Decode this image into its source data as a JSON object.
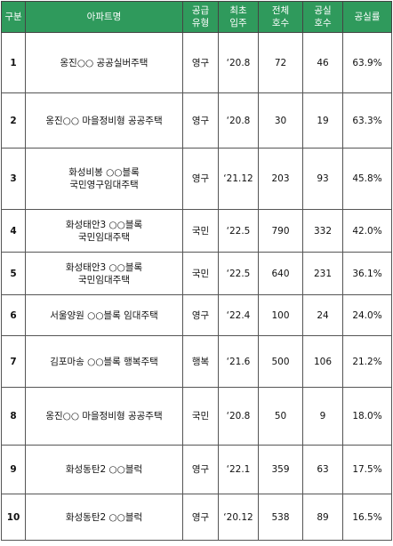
{
  "table": {
    "header": [
      "구분",
      "아파트명",
      "공급\n유형",
      "최초\n입주",
      "전체\n호수",
      "공실\n호수",
      "공실률"
    ],
    "rows": [
      [
        "1",
        "옹진○○ 공공실버주택",
        "영구",
        "‘20.8",
        72,
        46,
        "63.9%"
      ],
      [
        "2",
        "옹진○○ 마을정비형 공공주택",
        "영구",
        "‘20.8",
        30,
        19,
        "63.3%"
      ],
      [
        "3",
        "화성비봉 ○○블록\n국민영구임대주택",
        "영구",
        "‘21.12",
        203,
        93,
        "45.8%"
      ],
      [
        "4",
        "화성태안3 ○○블록\n국민임대주택",
        "국민",
        "‘22.5",
        790,
        332,
        "42.0%"
      ],
      [
        "5",
        "화성태안3 ○○블록\n국민임대주택",
        "국민",
        "‘22.5",
        640,
        231,
        "36.1%"
      ],
      [
        "6",
        "서울양원 ○○블록 임대주택",
        "영구",
        "‘22.4",
        100,
        24,
        "24.0%"
      ],
      [
        "7",
        "김포마송 ○○블록 행복주택",
        "행복",
        "‘21.6",
        500,
        106,
        "21.2%"
      ],
      [
        "8",
        "옹진○○ 마을정비형 공공주택",
        "국민",
        "‘20.8",
        50,
        9,
        "18.0%"
      ],
      [
        "9",
        "화성동탄2 ○○블럭",
        "영구",
        "‘22.1",
        359,
        63,
        "17.5%"
      ],
      [
        "10",
        "화성동탄2 ○○블럭",
        "영구",
        "‘20.12",
        538,
        89,
        "16.5%"
      ]
    ]
  }
}
